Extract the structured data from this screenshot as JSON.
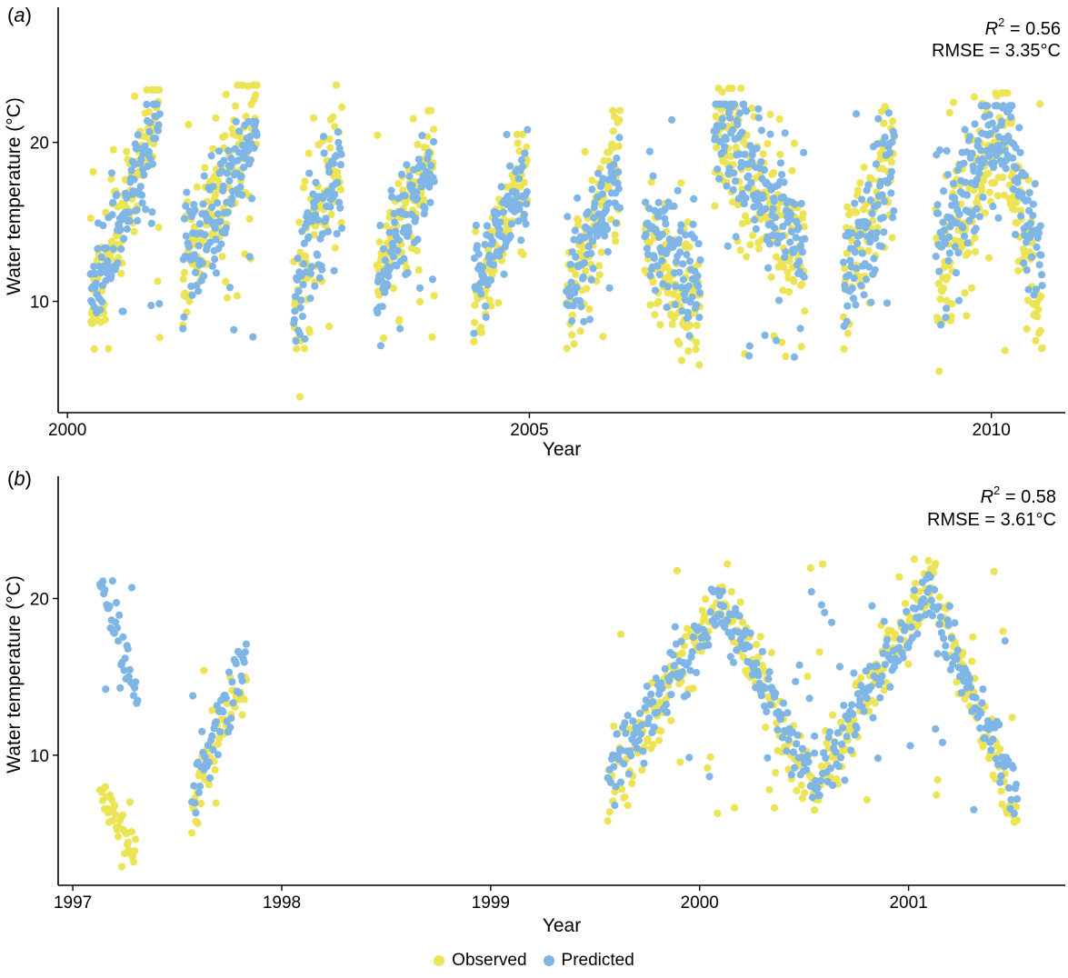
{
  "colors": {
    "observed": "#ece454",
    "predicted": "#7fb6e6",
    "axis": "#000000"
  },
  "legend": {
    "observed_label": "Observed",
    "predicted_label": "Predicted"
  },
  "chart_data": [
    {
      "type": "scatter",
      "panel_label": "(a)",
      "xlabel": "Year",
      "ylabel": "Water temperature (°C)",
      "xlim": [
        1999.9,
        2010.8
      ],
      "ylim": [
        3,
        28.5
      ],
      "xticks": [
        2000,
        2005,
        2010
      ],
      "yticks": [
        10,
        20
      ],
      "stats": {
        "r2_label": "R",
        "r2_sup": "2",
        "r2_value": " = 0.56",
        "rmse": "RMSE = 3.35°C"
      },
      "series": [
        {
          "name": "Observed",
          "segments": [
            {
              "start": 2000.25,
              "end": 2001.0,
              "y_start": 9.0,
              "y_end": 22.5,
              "min": 7.0,
              "max": 23.3,
              "spread": 1.6
            },
            {
              "start": 2001.25,
              "end": 2002.05,
              "y_start": 11.5,
              "y_end": 22.5,
              "min": 8.5,
              "max": 23.6,
              "spread": 2.0
            },
            {
              "start": 2002.45,
              "end": 2002.97,
              "y_start": 10.0,
              "y_end": 20.0,
              "min": 4.0,
              "max": 23.6,
              "spread": 2.2
            },
            {
              "start": 2003.35,
              "end": 2003.97,
              "y_start": 11.5,
              "y_end": 19.5,
              "min": 6.8,
              "max": 22.0,
              "spread": 1.8
            },
            {
              "start": 2004.4,
              "end": 2004.98,
              "y_start": 9.5,
              "y_end": 19.0,
              "min": 6.5,
              "max": 20.5,
              "spread": 1.6
            },
            {
              "start": 2005.4,
              "end": 2005.98,
              "y_start": 9.5,
              "y_end": 19.5,
              "min": 5.8,
              "max": 22.0,
              "spread": 2.0
            },
            {
              "start": 2006.25,
              "end": 2006.85,
              "y_start": 14.0,
              "y_end": 9.0,
              "min": 6.0,
              "max": 17.5,
              "spread": 2.2
            },
            {
              "start": 2007.0,
              "end": 2007.98,
              "y_start": 21.0,
              "y_end": 12.0,
              "min": 5.5,
              "max": 23.4,
              "spread": 2.4
            },
            {
              "start": 2008.4,
              "end": 2008.95,
              "y_start": 11.0,
              "y_end": 19.0,
              "min": 7.0,
              "max": 23.0,
              "spread": 2.2
            },
            {
              "start": 2009.4,
              "end": 2010.55,
              "y_start": 11.0,
              "y_end": 9.0,
              "min": 5.6,
              "max": 23.1,
              "spread": 2.4,
              "peak": 2010.1,
              "peak_y": 20.5
            }
          ]
        },
        {
          "name": "Predicted",
          "segments": [
            {
              "start": 2000.25,
              "end": 2001.0,
              "y_start": 10.0,
              "y_end": 21.5,
              "min": 7.8,
              "max": 22.4,
              "spread": 1.5
            },
            {
              "start": 2001.25,
              "end": 2002.05,
              "y_start": 12.5,
              "y_end": 20.5,
              "min": 7.5,
              "max": 21.3,
              "spread": 1.8
            },
            {
              "start": 2002.45,
              "end": 2002.97,
              "y_start": 10.5,
              "y_end": 19.0,
              "min": 7.5,
              "max": 20.8,
              "spread": 1.8
            },
            {
              "start": 2003.35,
              "end": 2003.97,
              "y_start": 11.5,
              "y_end": 18.5,
              "min": 6.8,
              "max": 21.9,
              "spread": 1.6
            },
            {
              "start": 2004.4,
              "end": 2004.98,
              "y_start": 10.5,
              "y_end": 18.0,
              "min": 7.2,
              "max": 20.9,
              "spread": 1.5
            },
            {
              "start": 2005.4,
              "end": 2005.98,
              "y_start": 10.5,
              "y_end": 18.0,
              "min": 7.8,
              "max": 20.3,
              "spread": 1.6
            },
            {
              "start": 2006.25,
              "end": 2006.85,
              "y_start": 15.0,
              "y_end": 11.0,
              "min": 7.5,
              "max": 22.4,
              "spread": 2.0
            },
            {
              "start": 2007.0,
              "end": 2007.98,
              "y_start": 22.0,
              "y_end": 13.5,
              "min": 6.5,
              "max": 22.4,
              "spread": 2.0
            },
            {
              "start": 2008.4,
              "end": 2008.95,
              "y_start": 11.5,
              "y_end": 18.5,
              "min": 6.8,
              "max": 21.9,
              "spread": 1.8
            },
            {
              "start": 2009.4,
              "end": 2010.55,
              "y_start": 13.0,
              "y_end": 11.0,
              "min": 7.0,
              "max": 22.3,
              "spread": 1.8,
              "peak": 2010.1,
              "peak_y": 22.0
            }
          ]
        }
      ]
    },
    {
      "type": "scatter",
      "panel_label": "(b)",
      "xlabel": "Year",
      "ylabel": "Water temperature (°C)",
      "xlim": [
        1996.93,
        2001.75
      ],
      "ylim": [
        1.7,
        27.8
      ],
      "xticks": [
        1997,
        1998,
        1999,
        2000,
        2001
      ],
      "yticks": [
        10,
        20
      ],
      "stats": {
        "r2_label": "R",
        "r2_sup": "2",
        "r2_value": " = 0.58",
        "rmse": "RMSE = 3.61°C"
      },
      "series": [
        {
          "name": "Observed",
          "segments": [
            {
              "start": 1997.13,
              "end": 1997.3,
              "y_start": 8.0,
              "y_end": 3.0,
              "min": 2.3,
              "max": 8.5,
              "spread": 0.8
            },
            {
              "start": 1997.57,
              "end": 1997.83,
              "y_start": 6.5,
              "y_end": 15.5,
              "min": 5.0,
              "max": 17.0,
              "spread": 1.0
            },
            {
              "start": 1999.56,
              "end": 2000.1,
              "y_start": 7.0,
              "y_end": 20.0,
              "min": 5.8,
              "max": 22.8,
              "spread": 1.2
            },
            {
              "start": 2000.1,
              "end": 2000.55,
              "y_start": 20.0,
              "y_end": 7.5,
              "min": 6.0,
              "max": 22.8,
              "spread": 1.0
            },
            {
              "start": 2000.55,
              "end": 2001.1,
              "y_start": 7.5,
              "y_end": 21.0,
              "min": 6.5,
              "max": 23.5,
              "spread": 1.2
            },
            {
              "start": 2001.1,
              "end": 2001.52,
              "y_start": 21.0,
              "y_end": 6.0,
              "min": 5.2,
              "max": 23.5,
              "spread": 1.0
            }
          ]
        },
        {
          "name": "Predicted",
          "segments": [
            {
              "start": 1997.13,
              "end": 1997.31,
              "y_start": 21.0,
              "y_end": 13.5,
              "min": 12.5,
              "max": 21.6,
              "spread": 0.6
            },
            {
              "start": 1997.57,
              "end": 1997.83,
              "y_start": 7.5,
              "y_end": 16.5,
              "min": 6.0,
              "max": 18.2,
              "spread": 1.0
            },
            {
              "start": 1999.56,
              "end": 2000.1,
              "y_start": 8.5,
              "y_end": 19.5,
              "min": 6.8,
              "max": 21.2,
              "spread": 1.1
            },
            {
              "start": 2000.1,
              "end": 2000.55,
              "y_start": 19.5,
              "y_end": 8.0,
              "min": 6.8,
              "max": 21.2,
              "spread": 1.0
            },
            {
              "start": 2000.55,
              "end": 2001.1,
              "y_start": 8.0,
              "y_end": 20.5,
              "min": 6.5,
              "max": 21.5,
              "spread": 1.1
            },
            {
              "start": 2001.1,
              "end": 2001.52,
              "y_start": 20.5,
              "y_end": 7.5,
              "min": 6.0,
              "max": 21.5,
              "spread": 1.0
            }
          ]
        }
      ]
    }
  ]
}
